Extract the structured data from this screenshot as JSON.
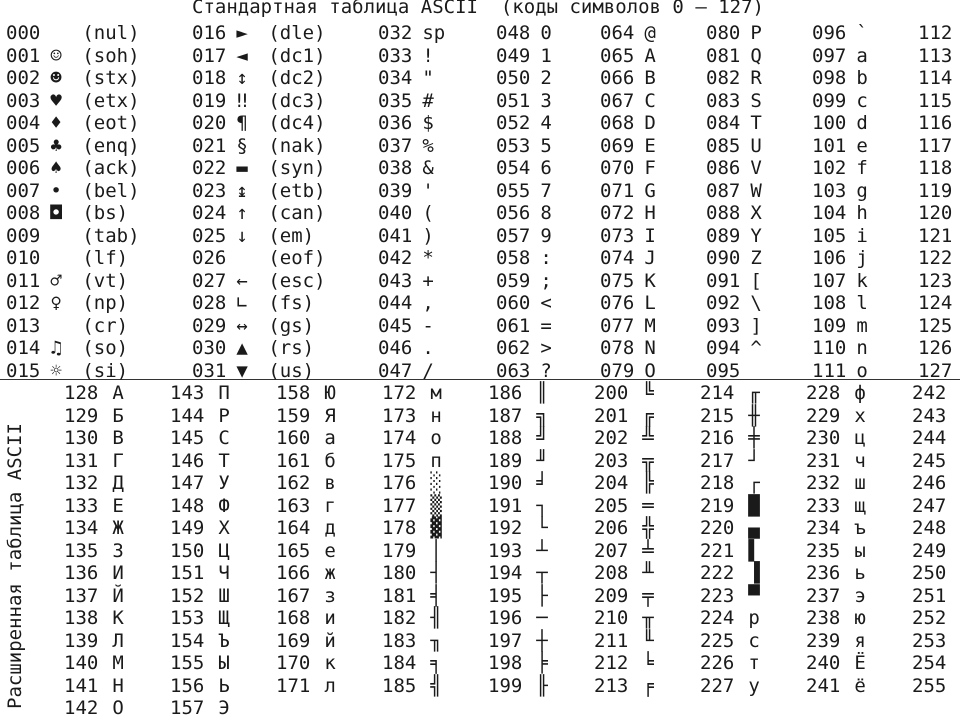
{
  "title": "Стандартная таблица ASCII  (коды символов 0 – 127)",
  "side_label": "Расширенная таблица ASCII",
  "standard_columns": [
    [
      [
        "000",
        "",
        "(nul)"
      ],
      [
        "001",
        "☺",
        "(soh)"
      ],
      [
        "002",
        "☻",
        "(stx)"
      ],
      [
        "003",
        "♥",
        "(etx)"
      ],
      [
        "004",
        "♦",
        "(eot)"
      ],
      [
        "005",
        "♣",
        "(enq)"
      ],
      [
        "006",
        "♠",
        "(ack)"
      ],
      [
        "007",
        "•",
        "(bel)"
      ],
      [
        "008",
        "◘",
        "(bs)"
      ],
      [
        "009",
        "",
        "(tab)"
      ],
      [
        "010",
        "",
        "(lf)"
      ],
      [
        "011",
        "♂",
        "(vt)"
      ],
      [
        "012",
        "♀",
        "(np)"
      ],
      [
        "013",
        "",
        "(cr)"
      ],
      [
        "014",
        "♫",
        "(so)"
      ],
      [
        "015",
        "☼",
        "(si)"
      ]
    ],
    [
      [
        "016",
        "►",
        "(dle)"
      ],
      [
        "017",
        "◄",
        "(dc1)"
      ],
      [
        "018",
        "↕",
        "(dc2)"
      ],
      [
        "019",
        "‼",
        "(dc3)"
      ],
      [
        "020",
        "¶",
        "(dc4)"
      ],
      [
        "021",
        "§",
        "(nak)"
      ],
      [
        "022",
        "▬",
        "(syn)"
      ],
      [
        "023",
        "↨",
        "(etb)"
      ],
      [
        "024",
        "↑",
        "(can)"
      ],
      [
        "025",
        "↓",
        "(em)"
      ],
      [
        "026",
        "",
        "(eof)"
      ],
      [
        "027",
        "←",
        "(esc)"
      ],
      [
        "028",
        "∟",
        "(fs)"
      ],
      [
        "029",
        "↔",
        "(gs)"
      ],
      [
        "030",
        "▲",
        "(rs)"
      ],
      [
        "031",
        "▼",
        "(us)"
      ]
    ],
    [
      [
        "032",
        "sp",
        ""
      ],
      [
        "033",
        "!",
        ""
      ],
      [
        "034",
        "\"",
        ""
      ],
      [
        "035",
        "#",
        ""
      ],
      [
        "036",
        "$",
        ""
      ],
      [
        "037",
        "%",
        ""
      ],
      [
        "038",
        "&",
        ""
      ],
      [
        "039",
        "'",
        ""
      ],
      [
        "040",
        "(",
        ""
      ],
      [
        "041",
        ")",
        ""
      ],
      [
        "042",
        "*",
        ""
      ],
      [
        "043",
        "+",
        ""
      ],
      [
        "044",
        ",",
        ""
      ],
      [
        "045",
        "-",
        ""
      ],
      [
        "046",
        ".",
        ""
      ],
      [
        "047",
        "/",
        ""
      ]
    ],
    [
      [
        "048",
        "0",
        ""
      ],
      [
        "049",
        "1",
        ""
      ],
      [
        "050",
        "2",
        ""
      ],
      [
        "051",
        "3",
        ""
      ],
      [
        "052",
        "4",
        ""
      ],
      [
        "053",
        "5",
        ""
      ],
      [
        "054",
        "6",
        ""
      ],
      [
        "055",
        "7",
        ""
      ],
      [
        "056",
        "8",
        ""
      ],
      [
        "057",
        "9",
        ""
      ],
      [
        "058",
        ":",
        ""
      ],
      [
        "059",
        ";",
        ""
      ],
      [
        "060",
        "<",
        ""
      ],
      [
        "061",
        "=",
        ""
      ],
      [
        "062",
        ">",
        ""
      ],
      [
        "063",
        "?",
        ""
      ]
    ],
    [
      [
        "064",
        "@",
        ""
      ],
      [
        "065",
        "A",
        ""
      ],
      [
        "066",
        "B",
        ""
      ],
      [
        "067",
        "C",
        ""
      ],
      [
        "068",
        "D",
        ""
      ],
      [
        "069",
        "E",
        ""
      ],
      [
        "070",
        "F",
        ""
      ],
      [
        "071",
        "G",
        ""
      ],
      [
        "072",
        "H",
        ""
      ],
      [
        "073",
        "I",
        ""
      ],
      [
        "074",
        "J",
        ""
      ],
      [
        "075",
        "K",
        ""
      ],
      [
        "076",
        "L",
        ""
      ],
      [
        "077",
        "M",
        ""
      ],
      [
        "078",
        "N",
        ""
      ],
      [
        "079",
        "O",
        ""
      ]
    ],
    [
      [
        "080",
        "P",
        ""
      ],
      [
        "081",
        "Q",
        ""
      ],
      [
        "082",
        "R",
        ""
      ],
      [
        "083",
        "S",
        ""
      ],
      [
        "084",
        "T",
        ""
      ],
      [
        "085",
        "U",
        ""
      ],
      [
        "086",
        "V",
        ""
      ],
      [
        "087",
        "W",
        ""
      ],
      [
        "088",
        "X",
        ""
      ],
      [
        "089",
        "Y",
        ""
      ],
      [
        "090",
        "Z",
        ""
      ],
      [
        "091",
        "[",
        ""
      ],
      [
        "092",
        "\\",
        ""
      ],
      [
        "093",
        "]",
        ""
      ],
      [
        "094",
        "^",
        ""
      ],
      [
        "095",
        "",
        ""
      ]
    ],
    [
      [
        "096",
        "`",
        ""
      ],
      [
        "097",
        "a",
        ""
      ],
      [
        "098",
        "b",
        ""
      ],
      [
        "099",
        "c",
        ""
      ],
      [
        "100",
        "d",
        ""
      ],
      [
        "101",
        "e",
        ""
      ],
      [
        "102",
        "f",
        ""
      ],
      [
        "103",
        "g",
        ""
      ],
      [
        "104",
        "h",
        ""
      ],
      [
        "105",
        "i",
        ""
      ],
      [
        "106",
        "j",
        ""
      ],
      [
        "107",
        "k",
        ""
      ],
      [
        "108",
        "l",
        ""
      ],
      [
        "109",
        "m",
        ""
      ],
      [
        "110",
        "n",
        ""
      ],
      [
        "111",
        "o",
        ""
      ]
    ],
    [
      [
        "112",
        "",
        ""
      ],
      [
        "113",
        "",
        ""
      ],
      [
        "114",
        "",
        ""
      ],
      [
        "115",
        "",
        ""
      ],
      [
        "116",
        "",
        ""
      ],
      [
        "117",
        "",
        ""
      ],
      [
        "118",
        "",
        ""
      ],
      [
        "119",
        "",
        ""
      ],
      [
        "120",
        "",
        ""
      ],
      [
        "121",
        "",
        ""
      ],
      [
        "122",
        "",
        ""
      ],
      [
        "123",
        "",
        ""
      ],
      [
        "124",
        "",
        ""
      ],
      [
        "125",
        "",
        ""
      ],
      [
        "126",
        "",
        ""
      ],
      [
        "127",
        "",
        ""
      ]
    ]
  ],
  "extended_columns": [
    [
      [
        "128",
        "А"
      ],
      [
        "129",
        "Б"
      ],
      [
        "130",
        "В"
      ],
      [
        "131",
        "Г"
      ],
      [
        "132",
        "Д"
      ],
      [
        "133",
        "Е"
      ],
      [
        "134",
        "Ж"
      ],
      [
        "135",
        "З"
      ],
      [
        "136",
        "И"
      ],
      [
        "137",
        "Й"
      ],
      [
        "138",
        "К"
      ],
      [
        "139",
        "Л"
      ],
      [
        "140",
        "М"
      ],
      [
        "141",
        "Н"
      ],
      [
        "142",
        "О"
      ]
    ],
    [
      [
        "143",
        "П"
      ],
      [
        "144",
        "Р"
      ],
      [
        "145",
        "С"
      ],
      [
        "146",
        "Т"
      ],
      [
        "147",
        "У"
      ],
      [
        "148",
        "Ф"
      ],
      [
        "149",
        "Х"
      ],
      [
        "150",
        "Ц"
      ],
      [
        "151",
        "Ч"
      ],
      [
        "152",
        "Ш"
      ],
      [
        "153",
        "Щ"
      ],
      [
        "154",
        "Ъ"
      ],
      [
        "155",
        "Ы"
      ],
      [
        "156",
        "Ь"
      ],
      [
        "157",
        "Э"
      ]
    ],
    [
      [
        "158",
        "Ю"
      ],
      [
        "159",
        "Я"
      ],
      [
        "160",
        "а"
      ],
      [
        "161",
        "б"
      ],
      [
        "162",
        "в"
      ],
      [
        "163",
        "г"
      ],
      [
        "164",
        "д"
      ],
      [
        "165",
        "е"
      ],
      [
        "166",
        "ж"
      ],
      [
        "167",
        "з"
      ],
      [
        "168",
        "и"
      ],
      [
        "169",
        "й"
      ],
      [
        "170",
        "к"
      ],
      [
        "171",
        "л"
      ]
    ],
    [
      [
        "172",
        "м"
      ],
      [
        "173",
        "н"
      ],
      [
        "174",
        "о"
      ],
      [
        "175",
        "п"
      ],
      [
        "176",
        "░"
      ],
      [
        "177",
        "▒"
      ],
      [
        "178",
        "▓"
      ],
      [
        "179",
        "│"
      ],
      [
        "180",
        "┤"
      ],
      [
        "181",
        "╡"
      ],
      [
        "182",
        "╢"
      ],
      [
        "183",
        "╖"
      ],
      [
        "184",
        "╕"
      ],
      [
        "185",
        "╣"
      ]
    ],
    [
      [
        "186",
        "║"
      ],
      [
        "187",
        "╗"
      ],
      [
        "188",
        "╝"
      ],
      [
        "189",
        "╜"
      ],
      [
        "190",
        "╛"
      ],
      [
        "191",
        "┐"
      ],
      [
        "192",
        "└"
      ],
      [
        "193",
        "┴"
      ],
      [
        "194",
        "┬"
      ],
      [
        "195",
        "├"
      ],
      [
        "196",
        "─"
      ],
      [
        "197",
        "┼"
      ],
      [
        "198",
        "╞"
      ],
      [
        "199",
        "╟"
      ]
    ],
    [
      [
        "200",
        "╚"
      ],
      [
        "201",
        "╔"
      ],
      [
        "202",
        "╩"
      ],
      [
        "203",
        "╦"
      ],
      [
        "204",
        "╠"
      ],
      [
        "205",
        "═"
      ],
      [
        "206",
        "╬"
      ],
      [
        "207",
        "╧"
      ],
      [
        "208",
        "╨"
      ],
      [
        "209",
        "╤"
      ],
      [
        "210",
        "╥"
      ],
      [
        "211",
        "╙"
      ],
      [
        "212",
        "╘"
      ],
      [
        "213",
        "╒"
      ]
    ],
    [
      [
        "214",
        "╓"
      ],
      [
        "215",
        "╫"
      ],
      [
        "216",
        "╪"
      ],
      [
        "217",
        "┘"
      ],
      [
        "218",
        "┌"
      ],
      [
        "219",
        "█"
      ],
      [
        "220",
        "▄"
      ],
      [
        "221",
        "▌"
      ],
      [
        "222",
        "▐"
      ],
      [
        "223",
        "▀"
      ],
      [
        "224",
        "р"
      ],
      [
        "225",
        "с"
      ],
      [
        "226",
        "т"
      ],
      [
        "227",
        "у"
      ]
    ],
    [
      [
        "228",
        "ф"
      ],
      [
        "229",
        "х"
      ],
      [
        "230",
        "ц"
      ],
      [
        "231",
        "ч"
      ],
      [
        "232",
        "ш"
      ],
      [
        "233",
        "щ"
      ],
      [
        "234",
        "ъ"
      ],
      [
        "235",
        "ы"
      ],
      [
        "236",
        "ь"
      ],
      [
        "237",
        "э"
      ],
      [
        "238",
        "ю"
      ],
      [
        "239",
        "я"
      ],
      [
        "240",
        "Ё"
      ],
      [
        "241",
        "ё"
      ]
    ],
    [
      [
        "242",
        ""
      ],
      [
        "243",
        ""
      ],
      [
        "244",
        ""
      ],
      [
        "245",
        ""
      ],
      [
        "246",
        ""
      ],
      [
        "247",
        ""
      ],
      [
        "248",
        ""
      ],
      [
        "249",
        ""
      ],
      [
        "250",
        ""
      ],
      [
        "251",
        ""
      ],
      [
        "252",
        ""
      ],
      [
        "253",
        ""
      ],
      [
        "254",
        ""
      ],
      [
        "255",
        ""
      ]
    ]
  ]
}
